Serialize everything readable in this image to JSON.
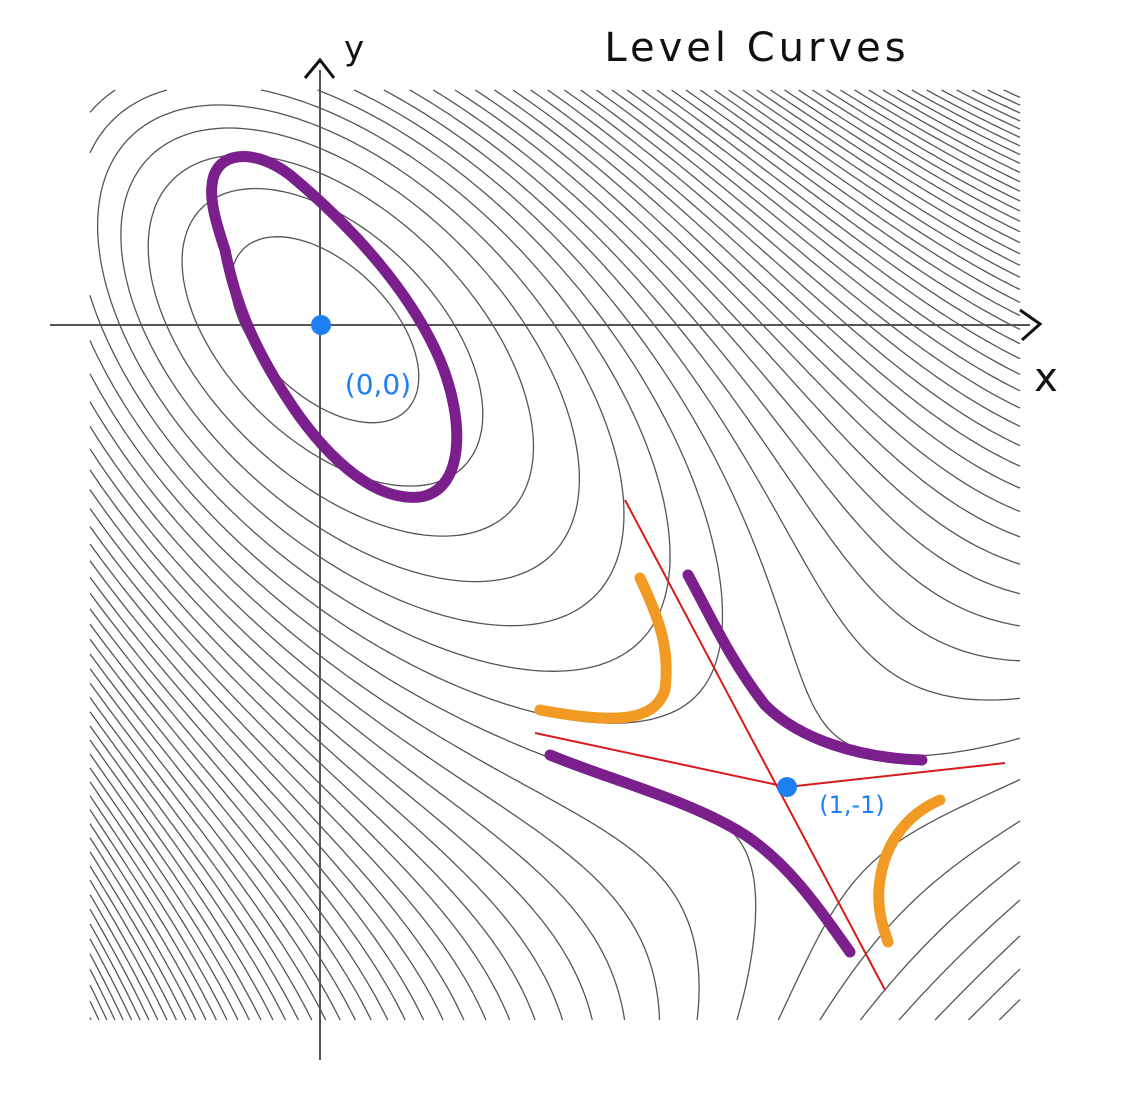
{
  "title": "Level Curves",
  "axes": {
    "x": "x",
    "y": "y"
  },
  "points": [
    {
      "label": "(0,0)"
    },
    {
      "label": "(1,-1)"
    }
  ]
}
